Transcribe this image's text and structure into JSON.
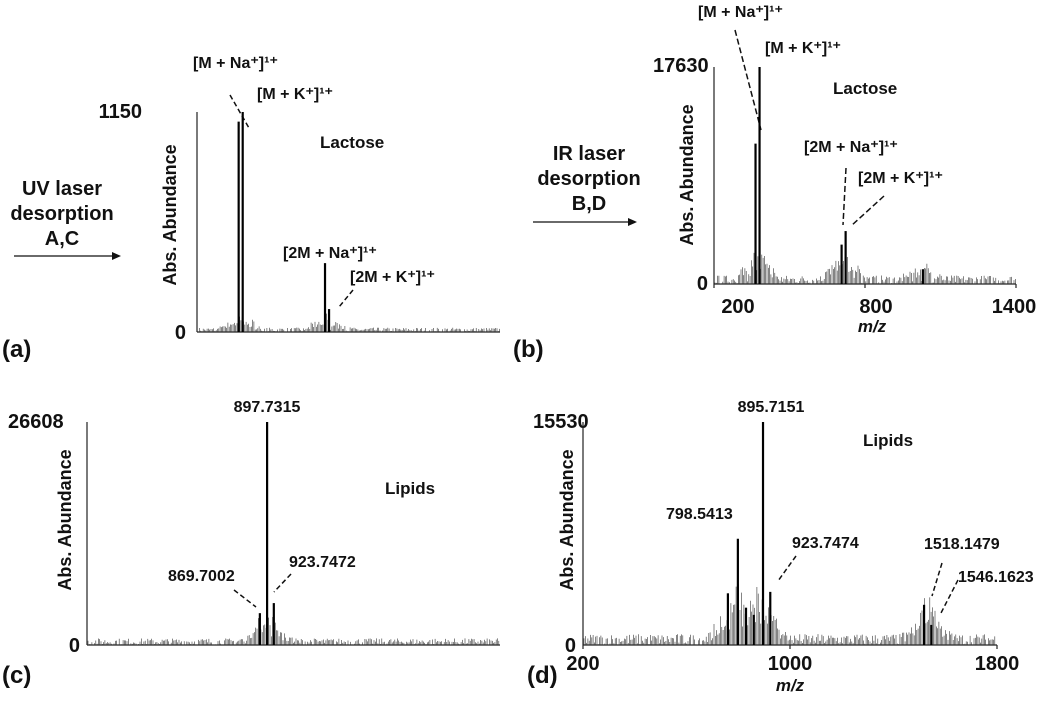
{
  "figure": {
    "uv_arrow_label": [
      "UV laser",
      "desorption",
      "A,C"
    ],
    "ir_arrow_label": [
      "IR laser",
      "desorption",
      "B,D"
    ]
  },
  "chart_data": [
    {
      "panel": "(a)",
      "type": "line",
      "title": "Lactose",
      "ylabel": "Abs.  Abundance",
      "xlabel": "",
      "xlim": [
        200,
        1400
      ],
      "ylim": [
        0,
        1150
      ],
      "x_ticks": [],
      "y_ticks": [
        "1150",
        "0"
      ],
      "peaks": [
        {
          "x": 365,
          "y": 1100,
          "label": "[M + Na⁺]¹⁺"
        },
        {
          "x": 381,
          "y": 1150,
          "label": "[M + K⁺]¹⁺"
        },
        {
          "x": 707,
          "y": 360,
          "label": "[2M + Na⁺]¹⁺"
        },
        {
          "x": 723,
          "y": 120,
          "label": "[2M + K⁺]¹⁺"
        }
      ],
      "noise_level": 0.02
    },
    {
      "panel": "(b)",
      "type": "line",
      "title": "Lactose",
      "ylabel": "Abs. Abundance",
      "xlabel": "m/z",
      "xlim": [
        200,
        1400
      ],
      "ylim": [
        0,
        17630
      ],
      "x_ticks": [
        "200",
        "800",
        "1400"
      ],
      "y_ticks": [
        "17630",
        "0"
      ],
      "peaks": [
        {
          "x": 365,
          "y": 11400,
          "label": "[M + Na⁺]¹⁺"
        },
        {
          "x": 381,
          "y": 17630,
          "label": "[M + K⁺]¹⁺"
        },
        {
          "x": 707,
          "y": 3200,
          "label": "[2M + Na⁺]¹⁺"
        },
        {
          "x": 723,
          "y": 4300,
          "label": "[2M + K⁺]¹⁺"
        },
        {
          "x": 1030,
          "y": 1200,
          "label": ""
        }
      ],
      "noise_level": 0.04
    },
    {
      "panel": "(c)",
      "type": "line",
      "title": "Lipids",
      "ylabel": "Abs. Abundance",
      "xlabel": "",
      "xlim": [
        200,
        1800
      ],
      "ylim": [
        0,
        26608
      ],
      "x_ticks": [],
      "y_ticks": [
        "26608",
        "0"
      ],
      "peaks": [
        {
          "x": 869.7002,
          "y": 3800,
          "label": "869.7002"
        },
        {
          "x": 897.7315,
          "y": 26608,
          "label": "897.7315"
        },
        {
          "x": 923.7472,
          "y": 5000,
          "label": "923.7472"
        }
      ],
      "noise_level": 0.03
    },
    {
      "panel": "(d)",
      "type": "line",
      "title": "Lipids",
      "ylabel": "Abs. Abundance",
      "xlabel": "m/z",
      "xlim": [
        200,
        1800
      ],
      "ylim": [
        0,
        15530
      ],
      "x_ticks": [
        "200",
        "1000",
        "1800"
      ],
      "y_ticks": [
        "15530",
        "0"
      ],
      "peaks": [
        {
          "x": 798.5413,
          "y": 7400,
          "label": "798.5413"
        },
        {
          "x": 895.7151,
          "y": 15530,
          "label": "895.7151"
        },
        {
          "x": 923.7474,
          "y": 3700,
          "label": "923.7474"
        },
        {
          "x": 1518.1479,
          "y": 2800,
          "label": "1518.1479"
        },
        {
          "x": 1546.1623,
          "y": 1400,
          "label": "1546.1623"
        },
        {
          "x": 760,
          "y": 3600,
          "label": ""
        },
        {
          "x": 830,
          "y": 2600,
          "label": ""
        },
        {
          "x": 860,
          "y": 2100,
          "label": ""
        }
      ],
      "noise_level": 0.05
    }
  ]
}
